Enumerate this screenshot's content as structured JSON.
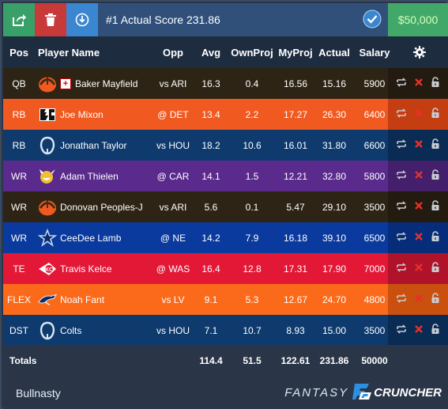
{
  "toolbar": {
    "export_icon": "share-export-icon",
    "delete_icon": "trash-icon",
    "download_icon": "download-icon",
    "lineup_title": "#1 Actual Score 231.86",
    "check_icon": "check-circle-icon",
    "budget": "$50,000"
  },
  "columns": {
    "pos": "Pos",
    "player": "Player Name",
    "opp": "Opp",
    "avg": "Avg",
    "own": "OwnProj",
    "my": "MyProj",
    "actual": "Actual",
    "salary": "Salary",
    "settings_icon": "gear-icon"
  },
  "rows": [
    {
      "pos": "QB",
      "player": "Baker Mayfield",
      "injury": "+",
      "opp": "vs ARI",
      "avg": "16.3",
      "own": "0.4",
      "my": "16.56",
      "actual": "15.16",
      "salary": "5900",
      "team": "CLE",
      "color": "#2e2415",
      "actions_color": "#231a10"
    },
    {
      "pos": "RB",
      "player": "Joe Mixon",
      "opp": "@ DET",
      "avg": "13.4",
      "own": "2.2",
      "my": "17.27",
      "actual": "26.30",
      "salary": "6400",
      "team": "CIN",
      "color": "#f05a21",
      "actions_color": "#c43e12"
    },
    {
      "pos": "RB",
      "player": "Jonathan Taylor",
      "opp": "vs HOU",
      "avg": "18.2",
      "own": "10.6",
      "my": "16.01",
      "actual": "31.80",
      "salary": "6600",
      "team": "IND",
      "color": "#0e3a6e",
      "actions_color": "#0a2b54"
    },
    {
      "pos": "WR",
      "player": "Adam Thielen",
      "opp": "@ CAR",
      "avg": "14.1",
      "own": "1.5",
      "my": "12.21",
      "actual": "32.80",
      "salary": "5800",
      "team": "MIN",
      "color": "#5a2a8c",
      "actions_color": "#441f6c"
    },
    {
      "pos": "WR",
      "player": "Donovan Peoples-J",
      "opp": "vs ARI",
      "avg": "5.6",
      "own": "0.1",
      "my": "5.47",
      "actual": "29.10",
      "salary": "3500",
      "team": "CLE",
      "color": "#2e2415",
      "actions_color": "#231a10"
    },
    {
      "pos": "WR",
      "player": "CeeDee Lamb",
      "opp": "@ NE",
      "avg": "14.2",
      "own": "7.9",
      "my": "16.18",
      "actual": "39.10",
      "salary": "6500",
      "team": "DAL",
      "color": "#0a3a9e",
      "actions_color": "#072c7a"
    },
    {
      "pos": "TE",
      "player": "Travis Kelce",
      "opp": "@ WAS",
      "avg": "16.4",
      "own": "12.8",
      "my": "17.31",
      "actual": "17.90",
      "salary": "7000",
      "team": "KC",
      "color": "#e31837",
      "actions_color": "#b0122a"
    },
    {
      "pos": "FLEX",
      "player": "Noah Fant",
      "opp": "vs LV",
      "avg": "9.1",
      "own": "5.3",
      "my": "12.67",
      "actual": "24.70",
      "salary": "4800",
      "team": "DEN",
      "color": "#fb6a1b",
      "actions_color": "#c9500f"
    },
    {
      "pos": "DST",
      "player": "Colts",
      "opp": "vs HOU",
      "avg": "7.1",
      "own": "10.7",
      "my": "8.93",
      "actual": "15.00",
      "salary": "3500",
      "team": "IND",
      "color": "#0e3a6e",
      "actions_color": "#0a2b54"
    }
  ],
  "row_actions": {
    "swap_icon": "swap-icon",
    "remove_icon": "x-remove-icon",
    "lock_icon": "lock-icon"
  },
  "totals": {
    "label": "Totals",
    "avg": "114.4",
    "own": "51.5",
    "my": "122.61",
    "actual": "231.86",
    "salary": "50000"
  },
  "footer": {
    "user": "Bullnasty",
    "brand_left": "FANTASY",
    "brand_right": "CRUNCHER"
  },
  "colors": {
    "accent_green": "#42a86a",
    "remove_red": "#e8302a"
  }
}
